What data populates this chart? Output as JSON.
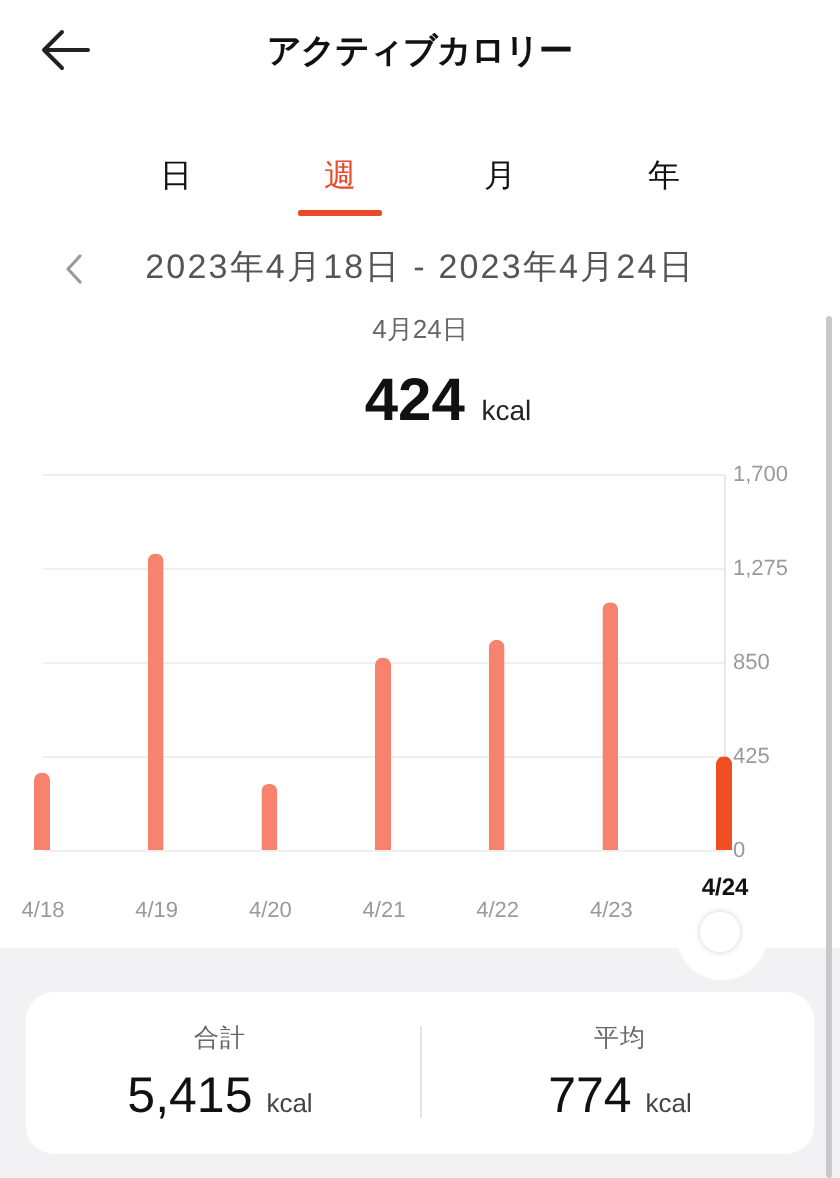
{
  "chart_data": {
    "type": "bar",
    "title": "アクティブカロリー",
    "subtitle": "2023年4月18日 - 2023年4月24日",
    "categories": [
      "4/18",
      "4/19",
      "4/20",
      "4/21",
      "4/22",
      "4/23",
      "4/24"
    ],
    "values": [
      350,
      1340,
      300,
      870,
      950,
      1120,
      424
    ],
    "colors": [
      "#f7836f",
      "#f7836f",
      "#f7836f",
      "#f7836f",
      "#f7836f",
      "#f7836f",
      "#f24e23"
    ],
    "ylim": [
      0,
      1700
    ],
    "yticks": [
      0,
      425,
      850,
      {
        "value": 1275,
        "label": "1,275"
      },
      {
        "value": 1700,
        "label": "1,700"
      }
    ],
    "grid": "y",
    "annotations": [
      "日",
      "週",
      "月",
      "年",
      "4月24日",
      "424 kcal",
      "合計",
      "5,415 kcal",
      "平均",
      "774 kcal"
    ]
  }
}
